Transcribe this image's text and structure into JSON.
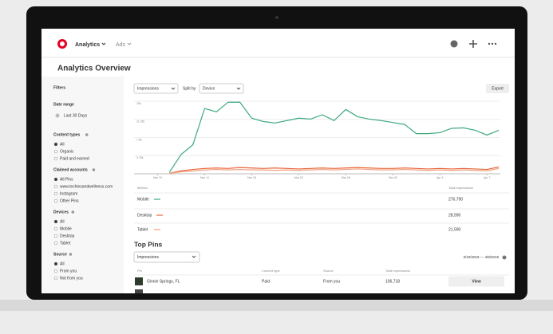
{
  "header": {
    "nav": [
      "Analytics",
      "Ads"
    ]
  },
  "title": "Analytics Overview",
  "filters": {
    "title": "Filters",
    "date_range": {
      "label": "Date range",
      "value": "Last 30 Days"
    },
    "groups": [
      {
        "label": "Content types",
        "options": [
          "All",
          "Organic",
          "Paid and earned"
        ]
      },
      {
        "label": "Claimed accounts",
        "options": [
          "All Pins",
          "www.techiesandwellness.com",
          "Instagram",
          "Other Pins"
        ]
      },
      {
        "label": "Devices",
        "options": [
          "All",
          "Mobile",
          "Desktop",
          "Tablet"
        ]
      },
      {
        "label": "Source",
        "options": [
          "All",
          "From you",
          "Not from you"
        ]
      }
    ]
  },
  "toolbar": {
    "metric": "Impressions",
    "split_label": "Split by",
    "split": "Device",
    "export": "Export"
  },
  "chart_data": {
    "type": "line",
    "categories": [
      null,
      null,
      "Mar 10",
      null,
      null,
      null,
      "Mar 14",
      null,
      null,
      null,
      "Mar 18",
      null,
      null,
      null,
      "Mar 22",
      null,
      null,
      null,
      "Mar 26",
      null,
      null,
      null,
      "Mar 30",
      null,
      null,
      null,
      "Apr 3",
      null,
      null,
      null,
      "Apr 7",
      null
    ],
    "series": [
      {
        "name": "Mobile",
        "color": "#3daa7e",
        "values": [
          null,
          null,
          null,
          300,
          4000,
          6000,
          13500,
          12800,
          14800,
          14800,
          11500,
          10800,
          10500,
          11000,
          11500,
          11300,
          12200,
          11000,
          13300,
          11800,
          11300,
          11000,
          10600,
          10200,
          8300,
          8300,
          8500,
          9400,
          9500,
          9000,
          8000,
          9000
        ]
      },
      {
        "name": "Desktop",
        "color": "#e8663d",
        "values": [
          null,
          null,
          null,
          100,
          600,
          900,
          1100,
          1200,
          1100,
          1300,
          1200,
          1100,
          1200,
          1100,
          1000,
          1100,
          1200,
          1100,
          1200,
          1300,
          1200,
          1100,
          1100,
          1200,
          1100,
          1000,
          1100,
          1000,
          1100,
          1000,
          900,
          1400
        ]
      },
      {
        "name": "Tablet",
        "color": "#f0a07a",
        "values": [
          null,
          null,
          null,
          100,
          400,
          600,
          800,
          900,
          800,
          900,
          800,
          800,
          700,
          800,
          700,
          800,
          900,
          800,
          900,
          1000,
          900,
          800,
          800,
          900,
          800,
          700,
          800,
          700,
          800,
          700,
          600,
          1100
        ]
      }
    ],
    "ylim": [
      0,
      15000
    ],
    "yticks": [
      {
        "value": 3750,
        "label": "3.75k"
      },
      {
        "value": 7500,
        "label": "7.5k"
      },
      {
        "value": 11250,
        "label": "11.25k"
      },
      {
        "value": 15000,
        "label": "15k"
      }
    ],
    "grid": true
  },
  "metrics": {
    "columns": [
      "Metrics",
      "Total impressions"
    ],
    "totals": [
      "276,790",
      "28,590",
      "21,590"
    ]
  },
  "top_pins": {
    "title": "Top Pins",
    "metric": "Impressions",
    "date_range": "3/10/2019 — 4/8/2019",
    "columns": [
      "Pin",
      "Content type",
      "Source",
      "Total impressions"
    ],
    "rows": [
      [
        "Ginnie Springs, FL",
        "Paid",
        "From you",
        "106,718"
      ]
    ],
    "action": "View"
  }
}
